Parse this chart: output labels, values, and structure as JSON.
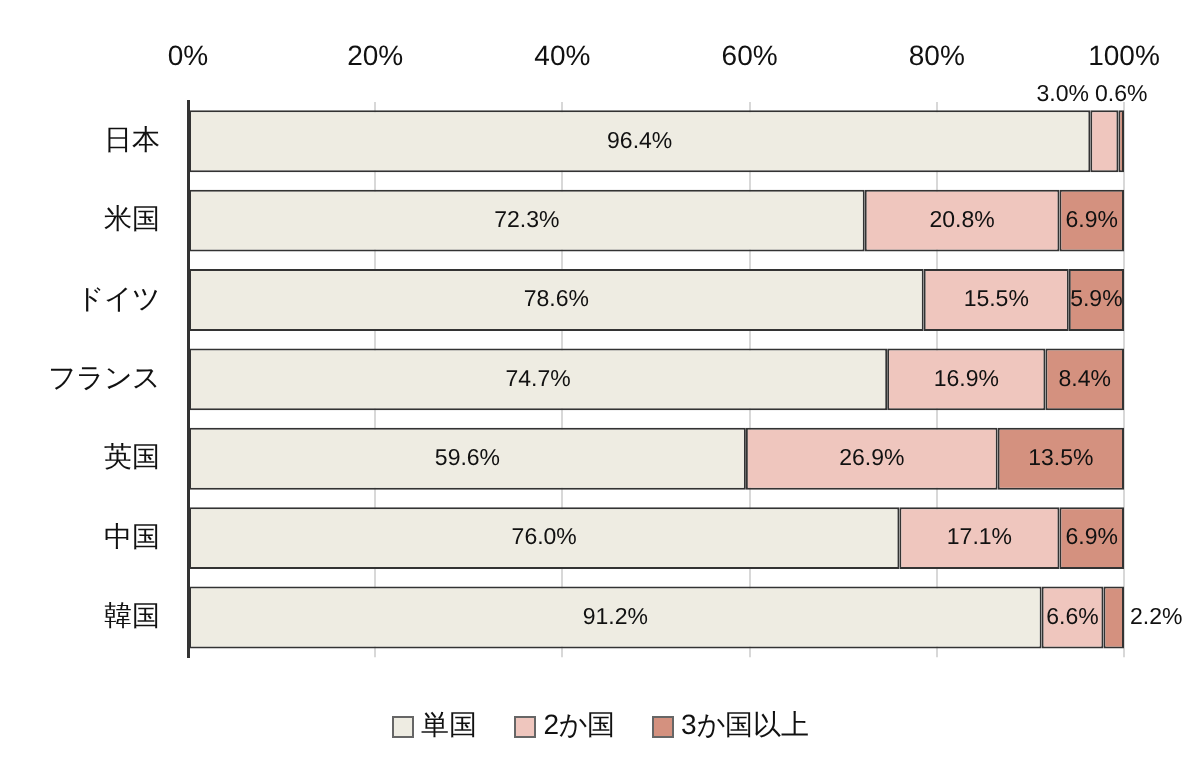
{
  "chart_data": {
    "type": "bar",
    "orientation": "horizontal",
    "stacked": true,
    "categories": [
      "日本",
      "米国",
      "ドイツ",
      "フランス",
      "英国",
      "中国",
      "韓国"
    ],
    "series": [
      {
        "name": "単国",
        "color": "#eeece2",
        "values": [
          96.4,
          72.3,
          78.6,
          74.7,
          59.6,
          76.0,
          91.2
        ],
        "value_labels": [
          "96.4%",
          "72.3%",
          "78.6%",
          "74.7%",
          "59.6%",
          "76.0%",
          "91.2%"
        ]
      },
      {
        "name": "2か国",
        "color": "#efc6be",
        "values": [
          3.0,
          20.8,
          15.5,
          16.9,
          26.9,
          17.1,
          6.6
        ],
        "value_labels": [
          "3.0%",
          "20.8%",
          "15.5%",
          "16.9%",
          "26.9%",
          "17.1%",
          "6.6%"
        ]
      },
      {
        "name": "3か国以上",
        "color": "#d4917f",
        "values": [
          0.6,
          6.9,
          5.9,
          8.4,
          13.5,
          6.9,
          2.2
        ],
        "value_labels": [
          "0.6%",
          "6.9%",
          "5.9%",
          "8.4%",
          "13.5%",
          "6.9%",
          "2.2%"
        ]
      }
    ],
    "xlim": [
      0,
      100
    ],
    "xticks": [
      {
        "value": 0,
        "label": "0%"
      },
      {
        "value": 20,
        "label": "20%"
      },
      {
        "value": 40,
        "label": "40%"
      },
      {
        "value": 60,
        "label": "60%"
      },
      {
        "value": 80,
        "label": "80%"
      },
      {
        "value": 100,
        "label": "100%"
      }
    ],
    "grid": "x",
    "legend": "bottom"
  }
}
